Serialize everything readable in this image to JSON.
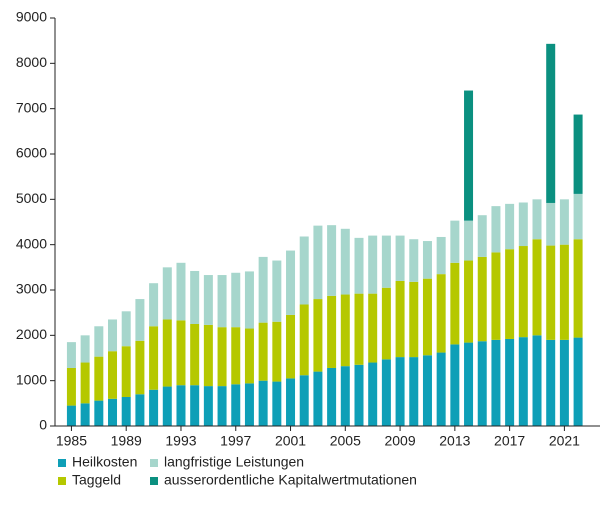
{
  "chart_data": {
    "type": "stacked_bar",
    "x": [
      1985,
      1986,
      1987,
      1988,
      1989,
      1990,
      1991,
      1992,
      1993,
      1994,
      1995,
      1996,
      1997,
      1998,
      1999,
      2000,
      2001,
      2002,
      2003,
      2004,
      2005,
      2006,
      2007,
      2008,
      2009,
      2010,
      2011,
      2012,
      2013,
      2014,
      2015,
      2016,
      2017,
      2018,
      2019,
      2020,
      2021,
      2022
    ],
    "xlim": [
      1983.8,
      2023.6
    ],
    "xticks": [
      1985,
      1989,
      1993,
      1997,
      2001,
      2005,
      2009,
      2013,
      2017,
      2021
    ],
    "ylim": [
      0,
      9000
    ],
    "yticks": [
      0,
      1000,
      2000,
      3000,
      4000,
      5000,
      6000,
      7000,
      8000,
      9000
    ],
    "grid": false,
    "legend": "bottom",
    "series": [
      {
        "name": "Heilkosten",
        "color": "#0e9fb7",
        "values": [
          450,
          500,
          560,
          600,
          640,
          700,
          800,
          870,
          900,
          900,
          880,
          880,
          920,
          940,
          1000,
          980,
          1050,
          1120,
          1200,
          1280,
          1320,
          1350,
          1400,
          1470,
          1520,
          1520,
          1560,
          1620,
          1800,
          1840,
          1870,
          1900,
          1920,
          1960,
          2000,
          1900,
          1900,
          1950
        ]
      },
      {
        "name": "Taggeld",
        "color": "#b5c800",
        "values": [
          830,
          900,
          970,
          1050,
          1120,
          1180,
          1400,
          1480,
          1430,
          1350,
          1350,
          1300,
          1260,
          1210,
          1280,
          1320,
          1400,
          1560,
          1600,
          1590,
          1580,
          1570,
          1520,
          1580,
          1680,
          1660,
          1690,
          1730,
          1800,
          1810,
          1860,
          1930,
          1980,
          2010,
          2120,
          2080,
          2100,
          2170
        ]
      },
      {
        "name": "langfristige Leistungen",
        "color": "#a6d6cc",
        "values": [
          570,
          600,
          670,
          700,
          770,
          920,
          950,
          1150,
          1270,
          1170,
          1100,
          1150,
          1200,
          1260,
          1450,
          1350,
          1420,
          1500,
          1620,
          1560,
          1450,
          1230,
          1280,
          1150,
          1000,
          940,
          830,
          820,
          930,
          880,
          920,
          1020,
          1000,
          960,
          880,
          940,
          1000,
          1000
        ]
      },
      {
        "name": "ausserordentliche Kapitalwertmutationen",
        "color": "#0b9080",
        "values": [
          null,
          null,
          null,
          null,
          null,
          null,
          null,
          null,
          null,
          null,
          null,
          null,
          null,
          null,
          null,
          null,
          null,
          null,
          null,
          null,
          null,
          null,
          null,
          null,
          null,
          null,
          null,
          null,
          null,
          2870,
          null,
          null,
          null,
          null,
          null,
          3510,
          null,
          1750
        ]
      }
    ]
  }
}
